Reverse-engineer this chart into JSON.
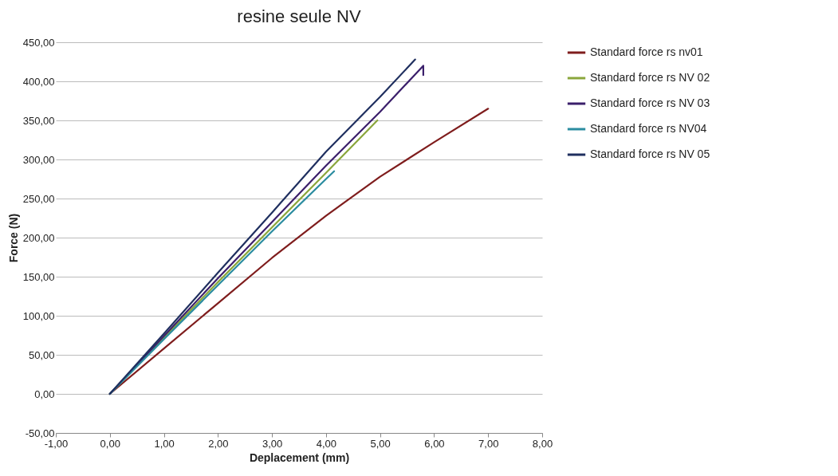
{
  "chart_data": {
    "type": "line",
    "title": "resine seule NV",
    "xlabel": "Deplacement  (mm)",
    "ylabel": "Force (N)",
    "xlim": [
      -1,
      8
    ],
    "ylim": [
      -50,
      450
    ],
    "xticks": [
      {
        "value": -1,
        "label": "-1,00"
      },
      {
        "value": 0,
        "label": "0,00"
      },
      {
        "value": 1,
        "label": "1,00"
      },
      {
        "value": 2,
        "label": "2,00"
      },
      {
        "value": 3,
        "label": "3,00"
      },
      {
        "value": 4,
        "label": "4,00"
      },
      {
        "value": 5,
        "label": "5,00"
      },
      {
        "value": 6,
        "label": "6,00"
      },
      {
        "value": 7,
        "label": "7,00"
      },
      {
        "value": 8,
        "label": "8,00"
      }
    ],
    "yticks": [
      {
        "value": -50,
        "label": "-50,00"
      },
      {
        "value": 0,
        "label": "0,00"
      },
      {
        "value": 50,
        "label": "50,00"
      },
      {
        "value": 100,
        "label": "100,00"
      },
      {
        "value": 150,
        "label": "150,00"
      },
      {
        "value": 200,
        "label": "200,00"
      },
      {
        "value": 250,
        "label": "250,00"
      },
      {
        "value": 300,
        "label": "300,00"
      },
      {
        "value": 350,
        "label": "350,00"
      },
      {
        "value": 400,
        "label": "400,00"
      },
      {
        "value": 450,
        "label": "450,00"
      }
    ],
    "grid": "y",
    "legend": "right",
    "marker": "none",
    "line_style": "solid",
    "series": [
      {
        "name": "Standard force rs nv01",
        "color": "#7f1d1d",
        "x": [
          0,
          1,
          2,
          3,
          4,
          5,
          6,
          7
        ],
        "values": [
          0,
          58,
          116,
          174,
          228,
          278,
          322,
          365
        ]
      },
      {
        "name": "Standard force rs NV 02",
        "color": "#8aa63c",
        "x": [
          0,
          1,
          2,
          3,
          4,
          4.95
        ],
        "values": [
          0,
          72,
          143,
          213,
          283,
          350
        ]
      },
      {
        "name": "Standard force rs NV 03",
        "color": "#3b1f6b",
        "x": [
          0,
          1,
          2,
          3,
          4,
          5,
          5.8,
          5.8
        ],
        "values": [
          0,
          74,
          148,
          220,
          292,
          361,
          420,
          408
        ]
      },
      {
        "name": "Standard force rs NV04",
        "color": "#2b8ca0",
        "x": [
          0,
          1,
          2,
          3,
          4,
          4.15
        ],
        "values": [
          0,
          70,
          139,
          208,
          275,
          285
        ]
      },
      {
        "name": "Standard force rs NV 05",
        "color": "#1f2f5f",
        "x": [
          0,
          1,
          2,
          3,
          4,
          5,
          5.65
        ],
        "values": [
          0,
          77,
          155,
          232,
          310,
          380,
          428
        ]
      }
    ]
  }
}
